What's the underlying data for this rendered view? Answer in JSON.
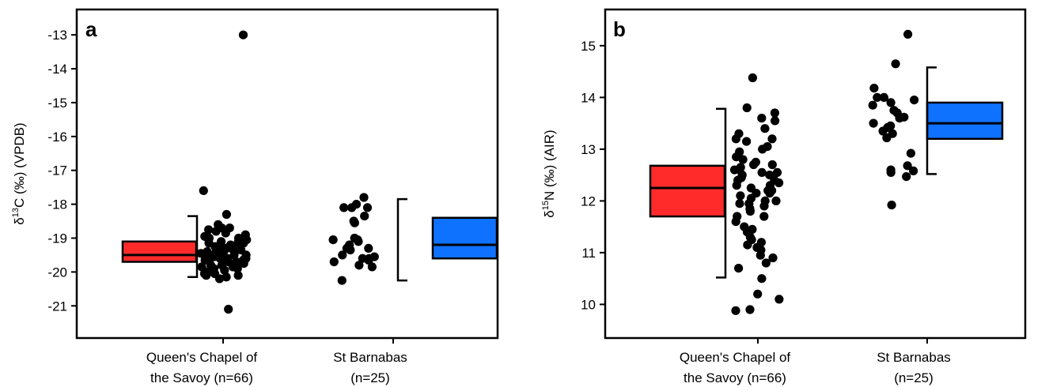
{
  "colors": {
    "queens": "#ff2b2b",
    "barnabas": "#0f72ff",
    "dot": "#000000",
    "frame": "#000000"
  },
  "chart_data": [
    {
      "type": "box_and_scatter",
      "panel_label": "a",
      "ylabel_prefix": "δ",
      "ylabel_sup": "13",
      "ylabel_rest": "C (‰) (VPDB)",
      "ylim": [
        -21.95,
        -12.25
      ],
      "yticks": [
        -13,
        -14,
        -15,
        -16,
        -17,
        -18,
        -19,
        -20,
        -21
      ],
      "categories": [
        {
          "line1": "Queen's Chapel of",
          "line2": "the Savoy (n=66)",
          "color": "#ff2b2b",
          "box": {
            "q1": -19.7,
            "median": -19.5,
            "q3": -19.1
          },
          "whisker": {
            "low": -20.15,
            "high": -18.35
          },
          "box_side": "left",
          "points": [
            -13.0,
            -17.6,
            -18.3,
            -18.6,
            -18.7,
            -18.7,
            -18.75,
            -18.8,
            -18.85,
            -18.9,
            -19.0,
            -19.0,
            -19.05,
            -19.1,
            -19.1,
            -19.15,
            -19.2,
            -19.2,
            -19.25,
            -19.3,
            -19.3,
            -19.3,
            -19.35,
            -19.4,
            -19.4,
            -19.4,
            -19.45,
            -19.5,
            -19.5,
            -19.5,
            -19.5,
            -19.55,
            -19.6,
            -19.6,
            -19.6,
            -19.6,
            -19.65,
            -19.7,
            -19.7,
            -19.7,
            -19.75,
            -19.8,
            -19.8,
            -19.85,
            -19.9,
            -19.9,
            -19.95,
            -20.0,
            -20.0,
            -20.05,
            -20.1,
            -20.1,
            -20.15,
            -20.2,
            -19.35,
            -19.45,
            -19.55,
            -19.25,
            -19.15,
            -19.05,
            -18.95,
            -19.75,
            -19.85,
            -19.65,
            -20.05,
            -21.1
          ]
        },
        {
          "line1": "St Barnabas",
          "line2": "(n=25)",
          "color": "#0f72ff",
          "box": {
            "q1": -19.6,
            "median": -19.2,
            "q3": -18.4
          },
          "whisker": {
            "low": -20.25,
            "high": -17.85
          },
          "box_side": "right",
          "points": [
            -17.8,
            -18.0,
            -18.1,
            -18.1,
            -18.1,
            -18.35,
            -18.5,
            -18.55,
            -19.0,
            -19.05,
            -19.05,
            -19.1,
            -19.2,
            -19.3,
            -19.3,
            -19.35,
            -19.5,
            -19.55,
            -19.6,
            -19.6,
            -19.65,
            -19.7,
            -19.8,
            -19.85,
            -20.25
          ]
        }
      ]
    },
    {
      "type": "box_and_scatter",
      "panel_label": "b",
      "ylabel_prefix": "δ",
      "ylabel_sup": "15",
      "ylabel_rest": "N (‰) (AIR)",
      "ylim": [
        9.35,
        15.7
      ],
      "yticks": [
        10,
        11,
        12,
        13,
        14,
        15
      ],
      "categories": [
        {
          "line1": "Queen's Chapel of",
          "line2": "the Savoy (n=66)",
          "color": "#ff2b2b",
          "box": {
            "q1": 11.7,
            "median": 12.25,
            "q3": 12.68
          },
          "whisker": {
            "low": 10.52,
            "high": 13.78
          },
          "box_side": "left",
          "points": [
            14.38,
            13.8,
            13.7,
            13.6,
            13.55,
            13.4,
            13.3,
            13.2,
            13.2,
            13.15,
            13.05,
            13.0,
            12.95,
            12.85,
            12.8,
            12.75,
            12.7,
            12.65,
            12.6,
            12.6,
            12.55,
            12.5,
            12.5,
            12.45,
            12.4,
            12.35,
            12.3,
            12.3,
            12.25,
            12.2,
            12.2,
            12.15,
            12.1,
            12.05,
            12.0,
            12.0,
            11.95,
            11.9,
            11.85,
            11.8,
            11.7,
            11.7,
            11.6,
            11.5,
            11.45,
            11.4,
            11.3,
            11.25,
            11.2,
            11.15,
            11.1,
            11.05,
            10.95,
            10.9,
            10.8,
            10.7,
            10.5,
            10.2,
            10.1,
            9.9,
            9.88,
            12.4,
            12.55,
            12.7,
            12.15,
            11.95
          ]
        },
        {
          "line1": "St Barnabas",
          "line2": "(n=25)",
          "color": "#0f72ff",
          "box": {
            "q1": 13.2,
            "median": 13.5,
            "q3": 13.9
          },
          "whisker": {
            "low": 12.52,
            "high": 14.58
          },
          "box_side": "right",
          "points": [
            15.22,
            14.65,
            14.18,
            14.0,
            14.0,
            13.95,
            13.9,
            13.85,
            13.75,
            13.7,
            13.62,
            13.6,
            13.5,
            13.45,
            13.42,
            13.35,
            13.3,
            13.22,
            12.92,
            12.68,
            12.6,
            12.58,
            12.55,
            12.47,
            11.92
          ]
        }
      ]
    }
  ]
}
